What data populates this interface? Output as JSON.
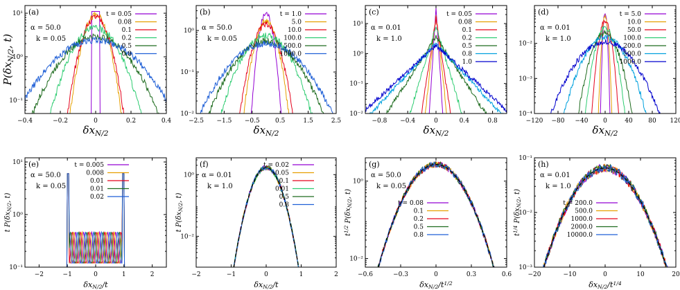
{
  "figure": {
    "panel_tags": [
      "(a)",
      "(b)",
      "(c)",
      "(d)",
      "(e)",
      "(f)",
      "(g)",
      "(h)"
    ],
    "ylabel_top": "P(δx_{N/2}, t)",
    "xlabel_top": "δx_{N/2}"
  },
  "colors": [
    "#9400d3",
    "#e69f00",
    "#e5001a",
    "#2ecc71",
    "#1e6b1e",
    "#1f5fd6",
    "#0000cd",
    "#00a0dd",
    "#222222"
  ],
  "chart_data": [
    {
      "id": "a",
      "type": "line",
      "tag": "(a)",
      "params": [
        "α = 50.0",
        "k = 0.05"
      ],
      "xlabel": "δx_{N/2}",
      "ylabel": "P(δx_{N/2}, t)",
      "xlim": [
        -0.4,
        0.4
      ],
      "ylim": [
        0.05,
        15
      ],
      "ylog": true,
      "xticks": [
        -0.4,
        -0.2,
        0,
        0.2,
        0.4
      ],
      "xticklabels": [
        "−0.4",
        "−0.2",
        "0",
        "0.2",
        "0.4"
      ],
      "yticks": [
        0.1,
        1,
        10
      ],
      "yticklabels": [
        "10⁻¹",
        "10⁰",
        "10¹"
      ],
      "legend_title": "t",
      "series": [
        {
          "name": "0.05",
          "color": "#9400d3",
          "shape": "box",
          "w": 0.025,
          "peak": 11
        },
        {
          "name": "0.08",
          "color": "#e69f00",
          "shape": "gauss",
          "sigma": 0.045,
          "peak": 9
        },
        {
          "name": "0.1",
          "color": "#e5001a",
          "shape": "gauss",
          "sigma": 0.05,
          "peak": 8
        },
        {
          "name": "0.2",
          "color": "#2ecc71",
          "shape": "gauss",
          "sigma": 0.085,
          "peak": 4.6
        },
        {
          "name": "0.5",
          "color": "#1e6b1e",
          "shape": "gauss",
          "sigma": 0.125,
          "peak": 2.9
        },
        {
          "name": "0.8",
          "color": "#1f5fd6",
          "shape": "gauss",
          "sigma": 0.16,
          "peak": 2.4
        }
      ]
    },
    {
      "id": "b",
      "type": "line",
      "tag": "(b)",
      "params": [
        "α = 50.0",
        "k = 0.05"
      ],
      "xlabel": "δx_{N/2}",
      "ylabel": "",
      "xlim": [
        -2.5,
        2.5
      ],
      "ylim": [
        0.01,
        4
      ],
      "ylog": true,
      "xticks": [
        -2.5,
        -1.5,
        -0.5,
        0.5,
        1.5,
        2.5
      ],
      "xticklabels": [
        "−2.5",
        "−1.5",
        "−0.5",
        "0.5",
        "1.5",
        "2.5"
      ],
      "yticks": [
        0.01,
        0.1,
        1
      ],
      "yticklabels": [
        "10⁻²",
        "10⁻¹",
        "10⁰"
      ],
      "legend_title": "t",
      "series": [
        {
          "name": "1.0",
          "color": "#9400d3",
          "shape": "gauss",
          "sigma": 0.16,
          "peak": 2.6
        },
        {
          "name": "5.0",
          "color": "#e69f00",
          "shape": "gauss",
          "sigma": 0.25,
          "peak": 1.7
        },
        {
          "name": "10.0",
          "color": "#e5001a",
          "shape": "gauss",
          "sigma": 0.3,
          "peak": 1.4
        },
        {
          "name": "100.0",
          "color": "#2ecc71",
          "shape": "gauss",
          "sigma": 0.55,
          "peak": 0.75
        },
        {
          "name": "500.0",
          "color": "#1e6b1e",
          "shape": "gauss",
          "sigma": 0.72,
          "peak": 0.55
        },
        {
          "name": "1000.0",
          "color": "#1f5fd6",
          "shape": "gauss",
          "sigma": 0.85,
          "peak": 0.48
        }
      ]
    },
    {
      "id": "c",
      "type": "line",
      "tag": "(c)",
      "params": [
        "α = 0.01",
        "k = 1.0"
      ],
      "xlabel": "δx_{N/2}",
      "ylabel": "",
      "xlim": [
        -1,
        1
      ],
      "ylim": [
        0.01,
        40
      ],
      "ylog": true,
      "xticks": [
        -0.8,
        -0.4,
        0,
        0.4,
        0.8
      ],
      "xticklabels": [
        "−0.8",
        "−0.4",
        "0",
        "0.4",
        "0.8"
      ],
      "yticks": [
        0.01,
        0.1,
        1,
        10
      ],
      "yticklabels": [
        "10⁻²",
        "10⁻¹",
        "10⁰",
        "10¹"
      ],
      "legend_title": "t",
      "series": [
        {
          "name": "0.05",
          "color": "#9400d3",
          "shape": "lap",
          "b": 0.012,
          "peak": 30
        },
        {
          "name": "0.08",
          "color": "#e69f00",
          "shape": "lap",
          "b": 0.02,
          "peak": 20
        },
        {
          "name": "0.1",
          "color": "#e5001a",
          "shape": "lap",
          "b": 0.028,
          "peak": 15
        },
        {
          "name": "0.2",
          "color": "#2ecc71",
          "shape": "lap",
          "b": 0.055,
          "peak": 8
        },
        {
          "name": "0.5",
          "color": "#1e6b1e",
          "shape": "lap",
          "b": 0.12,
          "peak": 3.5
        },
        {
          "name": "0.8",
          "color": "#00a0dd",
          "shape": "lap",
          "b": 0.17,
          "peak": 2.2
        },
        {
          "name": "1.0",
          "color": "#0000cd",
          "shape": "lap",
          "b": 0.2,
          "peak": 1.9
        }
      ]
    },
    {
      "id": "d",
      "type": "line",
      "tag": "(d)",
      "params": [
        "α = 0.01",
        "k = 1.0"
      ],
      "xlabel": "δx_{N/2}",
      "ylabel": "",
      "xlim": [
        -120,
        120
      ],
      "ylim": [
        0.0001,
        0.12
      ],
      "ylog": true,
      "xticks": [
        -120,
        -80,
        -40,
        0,
        40,
        80,
        120
      ],
      "xticklabels": [
        "−120",
        "−80",
        "−40",
        "0",
        "40",
        "80",
        "120"
      ],
      "yticks": [
        0.0001,
        0.001,
        0.01
      ],
      "yticklabels": [
        "10⁻⁴",
        "10⁻³",
        "10⁻²"
      ],
      "legend_title": "t",
      "series": [
        {
          "name": "5.0",
          "color": "#9400d3",
          "shape": "gauss",
          "sigma": 2.2,
          "peak": 0.08
        },
        {
          "name": "10.0",
          "color": "#e69f00",
          "shape": "gauss",
          "sigma": 3.2,
          "peak": 0.06
        },
        {
          "name": "50.0",
          "color": "#e5001a",
          "shape": "gauss",
          "sigma": 6.5,
          "peak": 0.043
        },
        {
          "name": "100.0",
          "color": "#2ecc71",
          "shape": "gauss",
          "sigma": 10,
          "peak": 0.028
        },
        {
          "name": "200.0",
          "color": "#1e6b1e",
          "shape": "gauss",
          "sigma": 14,
          "peak": 0.02
        },
        {
          "name": "500.0",
          "color": "#00a0dd",
          "shape": "gauss",
          "sigma": 22,
          "peak": 0.015
        },
        {
          "name": "1000.0",
          "color": "#0000cd",
          "shape": "gauss",
          "sigma": 30,
          "peak": 0.011
        }
      ]
    },
    {
      "id": "e",
      "type": "line",
      "tag": "(e)",
      "params": [
        "α = 50.0",
        "k = 0.05"
      ],
      "xlabel": "δx_{N/2}/t",
      "ylabel": "t P(δx_{N/2}, t)",
      "xlim": [
        -2.5,
        2.5
      ],
      "ylim": [
        0.1,
        12
      ],
      "ylog": true,
      "xticks": [
        -2,
        -1,
        0,
        1,
        2
      ],
      "xticklabels": [
        "−2",
        "−1",
        "0",
        "1",
        "2"
      ],
      "yticks": [
        0.1,
        1,
        10
      ],
      "yticklabels": [
        "10⁻¹",
        "10⁰",
        "10¹"
      ],
      "legend_title": "t",
      "series": [
        {
          "name": "0.005",
          "color": "#9400d3",
          "shape": "comb",
          "phase": 0.0
        },
        {
          "name": "0.008",
          "color": "#e69f00",
          "shape": "comb",
          "phase": 0.6
        },
        {
          "name": "0.01",
          "color": "#e5001a",
          "shape": "comb",
          "phase": 1.2
        },
        {
          "name": "0.01",
          "color": "#1e6b1e",
          "shape": "comb",
          "phase": 1.8
        },
        {
          "name": "0.02",
          "color": "#1f5fd6",
          "shape": "comb",
          "phase": 2.4
        }
      ]
    },
    {
      "id": "f",
      "type": "line",
      "tag": "(f)",
      "params": [
        "α = 0.01",
        "k = 1.0"
      ],
      "xlabel": "δx_{N/2}/t",
      "ylabel": "t P(δx_{N/2}, t)",
      "xlim": [
        -2,
        2
      ],
      "ylim": [
        0.001,
        3.5
      ],
      "ylog": true,
      "xticks": [
        -2,
        -1,
        0,
        1,
        2
      ],
      "xticklabels": [
        "−2",
        "−1",
        "0",
        "1",
        "2"
      ],
      "yticks": [
        0.01,
        1
      ],
      "yticklabels": [
        "10⁻²",
        "10⁰"
      ],
      "legend_title": "t",
      "series": [
        {
          "name": "0.02",
          "color": "#9400d3",
          "shape": "gauss",
          "sigma": 0.24,
          "peak": 1.7
        },
        {
          "name": "0.05",
          "color": "#e69f00",
          "shape": "gauss",
          "sigma": 0.24,
          "peak": 1.7
        },
        {
          "name": "0.1",
          "color": "#e5001a",
          "shape": "gauss",
          "sigma": 0.24,
          "peak": 1.7
        },
        {
          "name": "0.01",
          "color": "#2ecc71",
          "shape": "gauss",
          "sigma": 0.24,
          "peak": 1.7
        },
        {
          "name": "0.5",
          "color": "#1e6b1e",
          "shape": "gauss",
          "sigma": 0.24,
          "peak": 1.7
        },
        {
          "name": "0.8",
          "color": "#1f5fd6",
          "shape": "gauss",
          "sigma": 0.24,
          "peak": 1.7
        }
      ]
    },
    {
      "id": "g",
      "type": "line",
      "tag": "(g)",
      "params": [
        "α = 50.0",
        "k = 0.05"
      ],
      "xlabel": "δx_{N/2}/t^{1/2}",
      "ylabel": "t^{1/2} P(δx_{N/2}, t)",
      "xlim": [
        -0.6,
        0.6
      ],
      "ylim": [
        0.006,
        4
      ],
      "ylog": true,
      "xticks": [
        -0.6,
        -0.3,
        0,
        0.3,
        0.6
      ],
      "xticklabels": [
        "−0.6",
        "−0.3",
        "0",
        "0.3",
        "0.6"
      ],
      "yticks": [
        0.01,
        1
      ],
      "yticklabels": [
        "10⁻²",
        "10⁰"
      ],
      "legend_title": "t",
      "series": [
        {
          "name": "0.08",
          "color": "#9400d3",
          "shape": "gauss",
          "sigma": 0.14,
          "peak": 2.7
        },
        {
          "name": "0.1",
          "color": "#e69f00",
          "shape": "gauss",
          "sigma": 0.14,
          "peak": 2.7
        },
        {
          "name": "0.2",
          "color": "#e5001a",
          "shape": "gauss",
          "sigma": 0.14,
          "peak": 2.7
        },
        {
          "name": "0.5",
          "color": "#1e6b1e",
          "shape": "gauss",
          "sigma": 0.14,
          "peak": 2.7
        },
        {
          "name": "0.8",
          "color": "#1f5fd6",
          "shape": "gauss",
          "sigma": 0.14,
          "peak": 2.7
        }
      ]
    },
    {
      "id": "h",
      "type": "line",
      "tag": "(h)",
      "params": [
        "α = 0.01",
        "k = 1.0"
      ],
      "xlabel": "δx_{N/2}/t^{1/4}",
      "ylabel": "t^{1/4} P(δx_{N/2}, t)",
      "xlim": [
        -20,
        20
      ],
      "ylim": [
        0.001,
        0.1
      ],
      "ylog": true,
      "xticks": [
        -20,
        -10,
        0,
        10,
        20
      ],
      "xticklabels": [
        "−20",
        "−10",
        "0",
        "10",
        "20"
      ],
      "yticks": [
        0.001,
        0.01,
        0.1
      ],
      "yticklabels": [
        "10⁻³",
        "10⁻²",
        "10⁻¹"
      ],
      "legend_title": "t",
      "series": [
        {
          "name": "200.0",
          "color": "#9400d3",
          "shape": "gauss",
          "sigma": 6,
          "peak": 0.065
        },
        {
          "name": "500.0",
          "color": "#e69f00",
          "shape": "gauss",
          "sigma": 6,
          "peak": 0.065
        },
        {
          "name": "1000.0",
          "color": "#e5001a",
          "shape": "gauss",
          "sigma": 6,
          "peak": 0.065
        },
        {
          "name": "2000.0",
          "color": "#1e6b1e",
          "shape": "gauss",
          "sigma": 6,
          "peak": 0.065
        },
        {
          "name": "10000.0",
          "color": "#1f5fd6",
          "shape": "gauss",
          "sigma": 6,
          "peak": 0.065
        }
      ]
    }
  ]
}
